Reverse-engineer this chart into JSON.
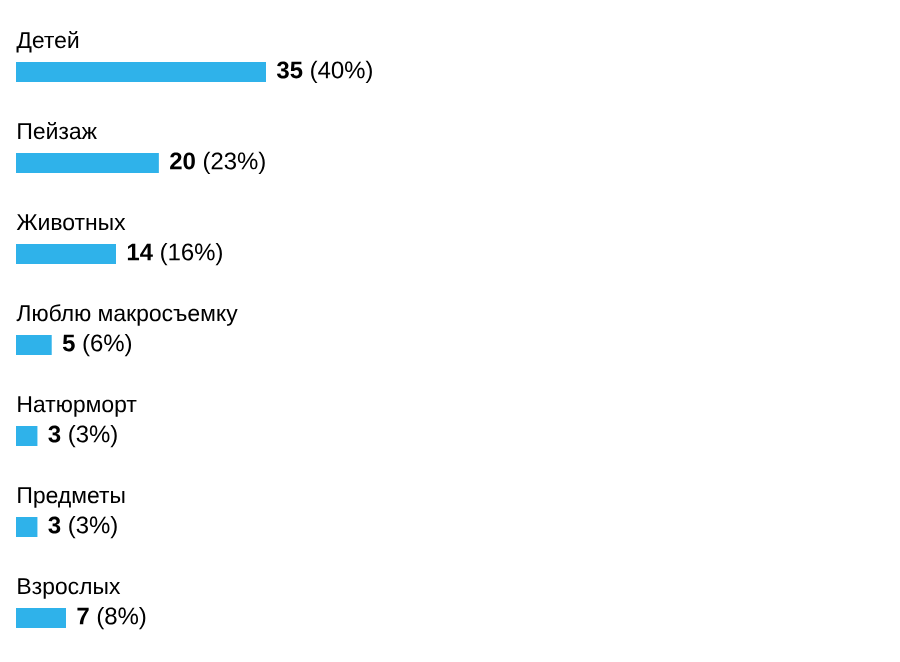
{
  "chart_data": {
    "type": "bar",
    "orientation": "horizontal",
    "categories": [
      "Детей",
      "Пейзаж",
      "Животных",
      "Люблю макросъемку",
      "Натюрморт",
      "Предметы",
      "Взрослых"
    ],
    "values": [
      35,
      20,
      14,
      5,
      3,
      3,
      7
    ],
    "value_labels": [
      "**35** (40%)",
      "**20** (23%)",
      "**14** (16%)",
      "**5** (6%)",
      "**3** (3%)",
      "**3** (3%)",
      "**7** (8%)"
    ],
    "color": "#2fb2ea"
  }
}
